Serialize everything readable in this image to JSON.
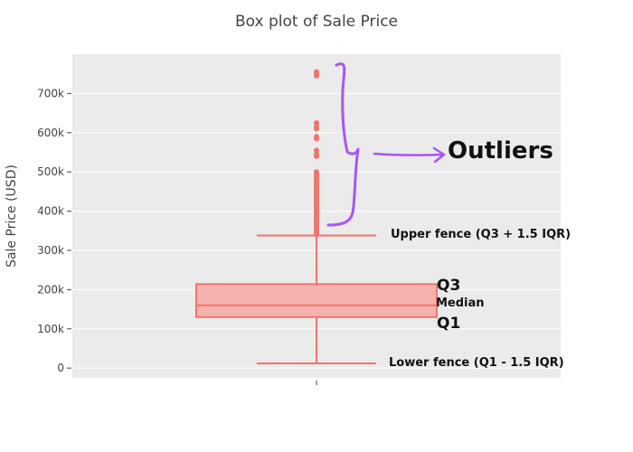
{
  "chart_data": {
    "type": "box",
    "title": "Box plot of Sale Price",
    "xlabel": "",
    "ylabel": "Sale Price (USD)",
    "ylim": [
      -25000,
      800000
    ],
    "y_ticks": [
      0,
      100000,
      200000,
      300000,
      400000,
      500000,
      600000,
      700000
    ],
    "y_tick_labels": [
      "0",
      "100k",
      "200k",
      "300k",
      "400k",
      "500k",
      "600k",
      "700k"
    ],
    "grid": true,
    "colors": {
      "box": "#f0746a",
      "box_fill": "#f4b3ae",
      "plot_bg": "#ebebeb",
      "annotation_stroke": "#a855f7"
    },
    "box": {
      "lower_fence": 12000,
      "q1": 130000,
      "median": 160000,
      "q3": 214000,
      "upper_fence": 338000
    },
    "outliers": [
      340000,
      345000,
      350000,
      355000,
      360000,
      365000,
      370000,
      375000,
      380000,
      385000,
      390000,
      395000,
      400000,
      405000,
      410000,
      415000,
      420000,
      425000,
      430000,
      435000,
      440000,
      445000,
      450000,
      455000,
      460000,
      465000,
      470000,
      475000,
      480000,
      485000,
      490000,
      495000,
      500000,
      540000,
      545000,
      555000,
      585000,
      590000,
      610000,
      615000,
      625000,
      745000,
      750000,
      755000
    ]
  },
  "annotations": {
    "outliers": "Outliers",
    "upper_fence": "Upper fence (Q3 + 1.5 IQR)",
    "lower_fence": "Lower fence (Q1 - 1.5 IQR)",
    "q3": "Q3",
    "median": "Median",
    "q1": "Q1"
  }
}
